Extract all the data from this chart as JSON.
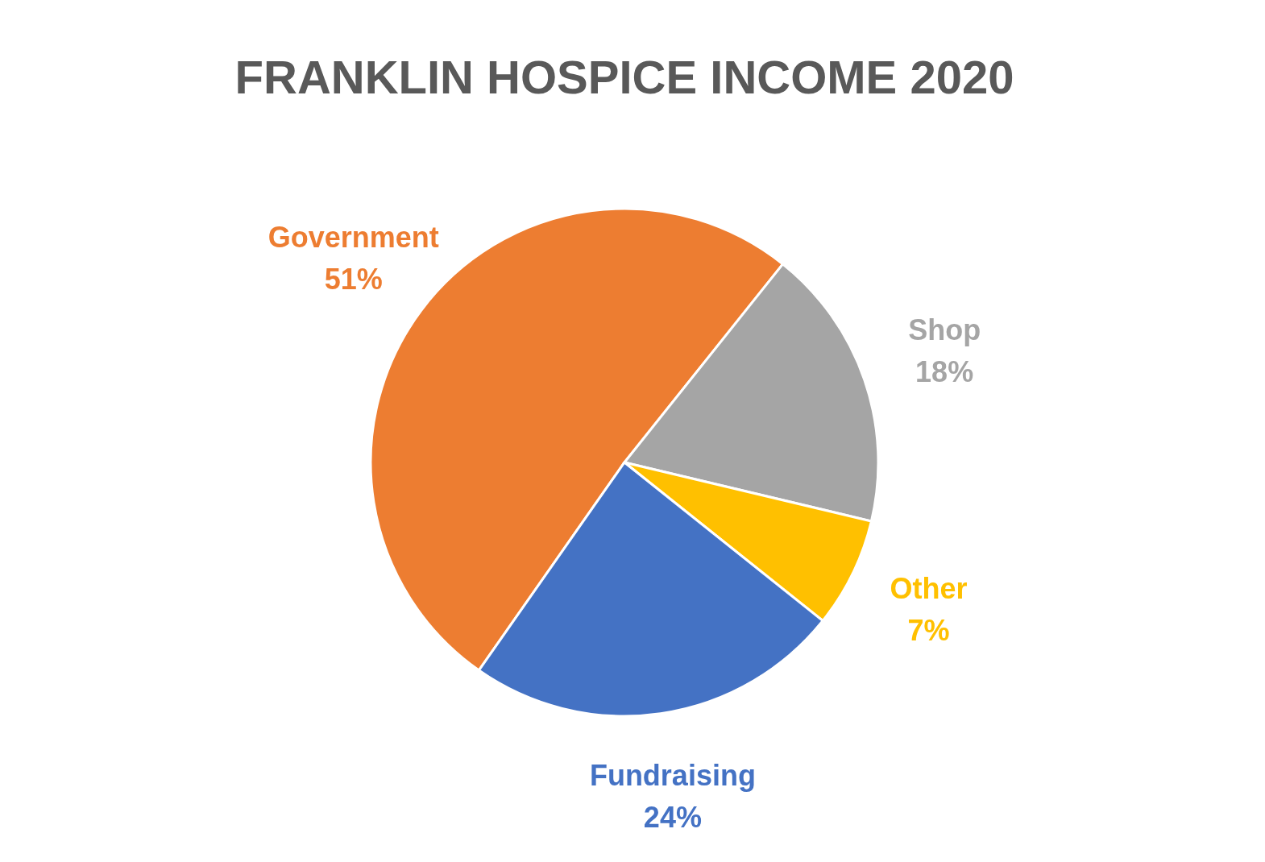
{
  "chart_data": {
    "type": "pie",
    "title": "FRANKLIN HOSPICE INCOME 2020",
    "categories": [
      "Government",
      "Shop",
      "Other",
      "Fundraising"
    ],
    "values": [
      51,
      18,
      7,
      24
    ],
    "value_labels": [
      "51%",
      "18%",
      "7%",
      "24%"
    ],
    "colors": [
      "#ed7d31",
      "#a5a5a5",
      "#ffc000",
      "#4472c4"
    ]
  }
}
